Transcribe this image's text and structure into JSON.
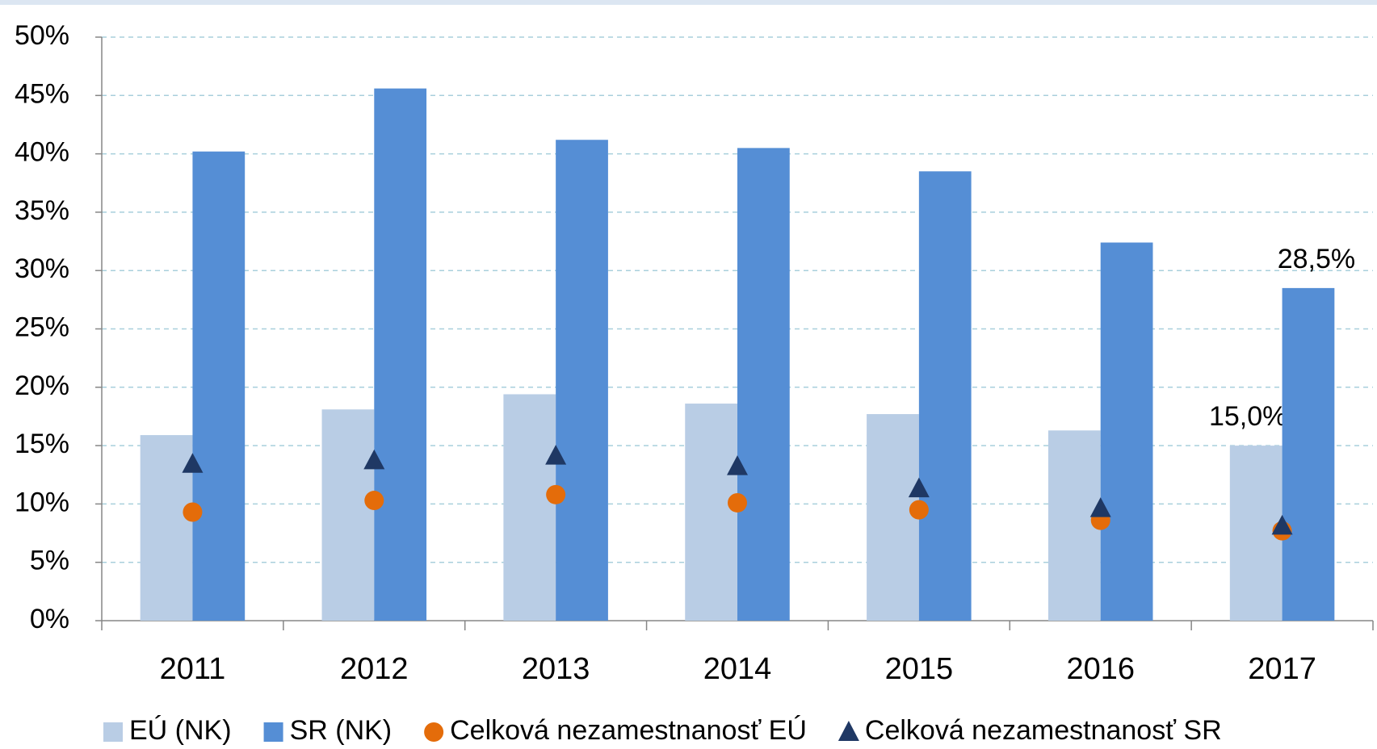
{
  "chart_data": {
    "type": "bar",
    "categories": [
      "2011",
      "2012",
      "2013",
      "2014",
      "2015",
      "2016",
      "2017"
    ],
    "series": [
      {
        "name": "EÚ (NK)",
        "color": "#b9cde5",
        "marker": "bar",
        "values": [
          15.9,
          18.1,
          19.4,
          18.6,
          17.7,
          16.3,
          15.0
        ],
        "value_labels": [
          null,
          null,
          null,
          null,
          null,
          null,
          "15,0%"
        ]
      },
      {
        "name": "SR (NK)",
        "color": "#558ed5",
        "marker": "bar",
        "values": [
          40.2,
          45.6,
          41.2,
          40.5,
          38.5,
          32.4,
          28.5
        ],
        "value_labels": [
          null,
          null,
          null,
          null,
          null,
          null,
          "28,5%"
        ]
      },
      {
        "name": "Celková nezamestnanosť EÚ",
        "color": "#e46c0a",
        "marker": "circle",
        "values": [
          9.3,
          10.3,
          10.8,
          10.1,
          9.5,
          8.6,
          7.7
        ]
      },
      {
        "name": "Celková nezamestnanosť SR",
        "color": "#1f3864",
        "marker": "triangle",
        "values": [
          13.4,
          13.7,
          14.1,
          13.2,
          11.3,
          9.6,
          8.1
        ]
      }
    ],
    "ylim": [
      0,
      50
    ],
    "yticks": [
      {
        "value": 0,
        "label": "0%"
      },
      {
        "value": 5,
        "label": "5%"
      },
      {
        "value": 10,
        "label": "10%"
      },
      {
        "value": 15,
        "label": "15%"
      },
      {
        "value": 20,
        "label": "20%"
      },
      {
        "value": 25,
        "label": "25%"
      },
      {
        "value": 30,
        "label": "30%"
      },
      {
        "value": 35,
        "label": "35%"
      },
      {
        "value": 40,
        "label": "40%"
      },
      {
        "value": 45,
        "label": "45%"
      },
      {
        "value": 50,
        "label": "50%"
      }
    ],
    "grid": true,
    "legend": "bottom"
  }
}
